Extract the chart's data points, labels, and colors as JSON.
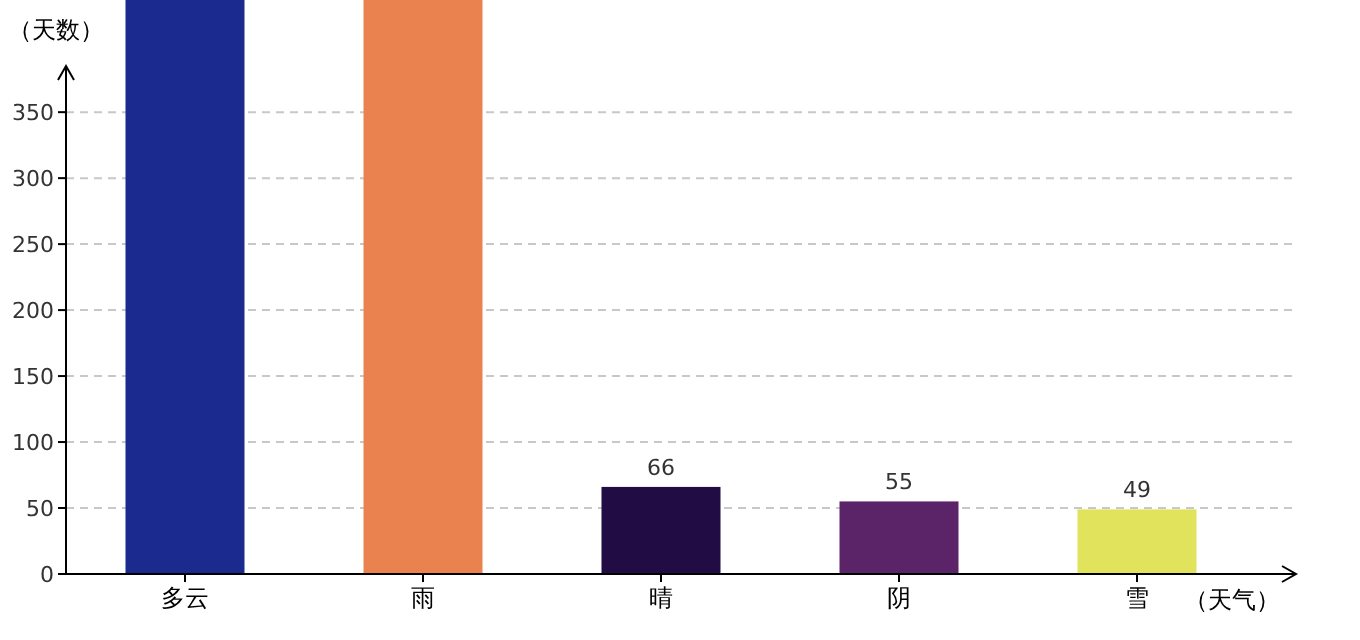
{
  "chart_data": {
    "type": "bar",
    "xlabel": "（天气）",
    "ylabel": "（天数）",
    "categories": [
      "多云",
      "雨",
      "晴",
      "阴",
      "雪"
    ],
    "values": [
      435,
      435,
      66,
      55,
      49
    ],
    "colors": [
      "#1b2a8e",
      "#e9824f",
      "#210d43",
      "#5b2469",
      "#e1e35d"
    ],
    "value_labels": [
      null,
      null,
      "66",
      "55",
      "49"
    ],
    "ylim": [
      0,
      435
    ],
    "yticks": [
      0,
      50,
      100,
      150,
      200,
      250,
      300,
      350
    ],
    "grid": "y"
  }
}
